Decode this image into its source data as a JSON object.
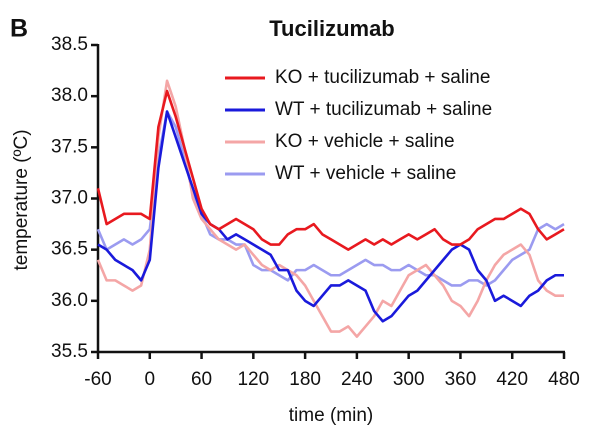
{
  "chart_data": {
    "type": "line",
    "panel_label": "B",
    "title": "Tucilizumab",
    "x_label": "time (min)",
    "y_label": "temperature (ºC)",
    "x": [
      -60,
      -50,
      -40,
      -30,
      -20,
      -10,
      0,
      10,
      20,
      30,
      40,
      50,
      60,
      70,
      80,
      90,
      100,
      110,
      120,
      130,
      140,
      150,
      160,
      170,
      180,
      190,
      200,
      210,
      220,
      230,
      240,
      250,
      260,
      270,
      280,
      290,
      300,
      310,
      320,
      330,
      340,
      350,
      360,
      370,
      380,
      390,
      400,
      410,
      420,
      430,
      440,
      450,
      460,
      470,
      480
    ],
    "series": [
      {
        "name": "KO + tucilizumab + saline",
        "color": "#e8191f",
        "values": [
          37.1,
          36.75,
          36.8,
          36.85,
          36.85,
          36.85,
          36.8,
          37.7,
          38.05,
          37.8,
          37.5,
          37.2,
          36.9,
          36.75,
          36.7,
          36.75,
          36.8,
          36.75,
          36.7,
          36.6,
          36.55,
          36.55,
          36.65,
          36.7,
          36.7,
          36.75,
          36.65,
          36.6,
          36.55,
          36.5,
          36.55,
          36.6,
          36.55,
          36.6,
          36.55,
          36.6,
          36.65,
          36.6,
          36.65,
          36.7,
          36.6,
          36.55,
          36.55,
          36.6,
          36.7,
          36.75,
          36.8,
          36.8,
          36.85,
          36.9,
          36.85,
          36.7,
          36.6,
          36.65,
          36.7
        ]
      },
      {
        "name": "WT + tucilizumab + saline",
        "color": "#1a1adb",
        "values": [
          36.55,
          36.5,
          36.4,
          36.35,
          36.3,
          36.2,
          36.4,
          37.3,
          37.85,
          37.6,
          37.35,
          37.1,
          36.85,
          36.75,
          36.7,
          36.6,
          36.65,
          36.6,
          36.55,
          36.5,
          36.45,
          36.3,
          36.3,
          36.1,
          36.0,
          35.95,
          36.05,
          36.15,
          36.15,
          36.2,
          36.15,
          36.1,
          35.9,
          35.8,
          35.85,
          35.95,
          36.05,
          36.1,
          36.2,
          36.3,
          36.4,
          36.5,
          36.55,
          36.5,
          36.3,
          36.2,
          36.0,
          36.05,
          36.0,
          35.95,
          36.05,
          36.1,
          36.2,
          36.25,
          36.25
        ]
      },
      {
        "name": "KO + vehicle + saline",
        "color": "#f4a6a6",
        "values": [
          36.4,
          36.2,
          36.2,
          36.15,
          36.1,
          36.15,
          36.5,
          37.6,
          38.15,
          37.9,
          37.5,
          37.0,
          36.8,
          36.7,
          36.6,
          36.55,
          36.5,
          36.55,
          36.45,
          36.35,
          36.3,
          36.35,
          36.3,
          36.25,
          36.15,
          36.0,
          35.85,
          35.7,
          35.7,
          35.75,
          35.65,
          35.75,
          35.85,
          36.0,
          35.95,
          36.1,
          36.25,
          36.3,
          36.35,
          36.25,
          36.15,
          36.0,
          35.95,
          35.85,
          36.0,
          36.2,
          36.35,
          36.45,
          36.5,
          36.55,
          36.45,
          36.2,
          36.1,
          36.05,
          36.05
        ]
      },
      {
        "name": "WT + vehicle + saline",
        "color": "#9b9bf0",
        "values": [
          36.7,
          36.5,
          36.55,
          36.6,
          36.55,
          36.6,
          36.7,
          37.4,
          37.85,
          37.7,
          37.4,
          37.05,
          36.85,
          36.65,
          36.6,
          36.6,
          36.55,
          36.55,
          36.35,
          36.3,
          36.3,
          36.25,
          36.2,
          36.3,
          36.3,
          36.35,
          36.3,
          36.25,
          36.25,
          36.3,
          36.35,
          36.4,
          36.35,
          36.35,
          36.3,
          36.3,
          36.35,
          36.3,
          36.25,
          36.25,
          36.2,
          36.15,
          36.15,
          36.2,
          36.2,
          36.15,
          36.2,
          36.3,
          36.4,
          36.45,
          36.5,
          36.7,
          36.75,
          36.7,
          36.75
        ]
      }
    ],
    "xlim": [
      -60,
      480
    ],
    "xticks": [
      -60,
      0,
      60,
      120,
      180,
      240,
      300,
      360,
      420,
      480
    ],
    "ylim": [
      35.5,
      38.5
    ],
    "yticks": [
      35.5,
      {
        "value": 36,
        "label": "36.0"
      },
      36.5,
      {
        "value": 37,
        "label": "37.0"
      },
      37.5,
      {
        "value": 38,
        "label": "38.0"
      },
      38.5
    ],
    "grid": false,
    "legend": "upper right"
  }
}
